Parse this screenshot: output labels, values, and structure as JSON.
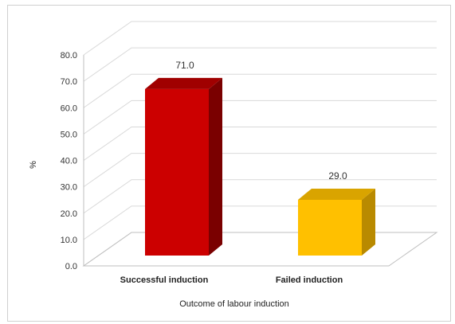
{
  "chart_data": {
    "type": "bar",
    "categories": [
      "Successful induction",
      "Failed induction"
    ],
    "values": [
      71.0,
      29.0
    ],
    "data_labels": [
      "71.0",
      "29.0"
    ],
    "ylim": [
      0,
      80
    ],
    "yticks": [
      "0.0",
      "10.0",
      "20.0",
      "30.0",
      "40.0",
      "50.0",
      "60.0",
      "70.0",
      "80.0"
    ],
    "ylabel": "%",
    "xlabel": "Outcome of labour induction",
    "title": "",
    "grid": true,
    "legend": "none",
    "style": "3d-column",
    "colors": {
      "bar1_front": "#cc0000",
      "bar1_side": "#7a0000",
      "bar1_top": "#a00000",
      "bar2_front": "#ffc000",
      "bar2_side": "#b98a00",
      "bar2_top": "#d9a400",
      "grid": "#d9d9d9"
    }
  }
}
